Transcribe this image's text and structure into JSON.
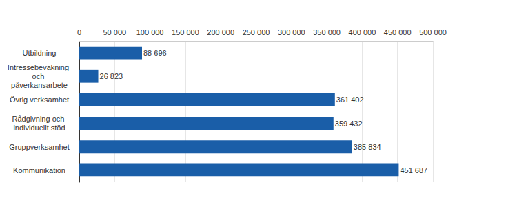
{
  "chart_data": {
    "type": "bar",
    "orientation": "horizontal",
    "categories": [
      "Utbildning",
      "Intressebevakning och påverkansarbete",
      "Övrig verksamhet",
      "Rådgivning och individuellt stöd",
      "Gruppverksamhet",
      "Kommunikation"
    ],
    "values": [
      88696,
      26823,
      361402,
      359432,
      385834,
      451687
    ],
    "value_labels": [
      "88 696",
      "26 823",
      "361 402",
      "359 432",
      "385 834",
      "451 687"
    ],
    "data_labels": true,
    "color": "#1a5ea8",
    "xlim": [
      0,
      500000
    ],
    "xticks": [
      0,
      {
        "value": 50000,
        "label": "50 000"
      },
      {
        "value": 100000,
        "label": "100 000"
      },
      {
        "value": 150000,
        "label": "150 000"
      },
      {
        "value": 200000,
        "label": "200 000"
      },
      {
        "value": 250000,
        "label": "250 000"
      },
      {
        "value": 300000,
        "label": "300 000"
      },
      {
        "value": 350000,
        "label": "350 000"
      },
      {
        "value": 400000,
        "label": "400 000"
      },
      {
        "value": 450000,
        "label": "450 000"
      },
      {
        "value": 500000,
        "label": "500 000"
      }
    ],
    "grid": true
  }
}
